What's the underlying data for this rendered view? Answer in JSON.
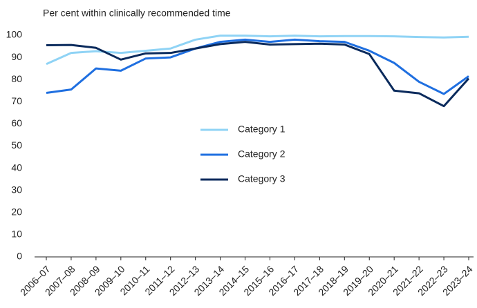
{
  "chart_data": {
    "type": "line",
    "y_axis_label": "Per cent within clinically recommended time",
    "categories": [
      "2006–07",
      "2007–08",
      "2008–09",
      "2009–10",
      "2010–11",
      "2011–12",
      "2012–13",
      "2013–14",
      "2014–15",
      "2015–16",
      "2016–17",
      "2017–18",
      "2018–19",
      "2019–20",
      "2020–21",
      "2021–22",
      "2022–23",
      "2023–24"
    ],
    "series": [
      {
        "name": "Category 1",
        "color": "#8fd3f5",
        "values": [
          87,
          92,
          92.8,
          92,
          93,
          94,
          98,
          99.8,
          99.8,
          99.5,
          99.8,
          99.5,
          99.6,
          99.6,
          99.5,
          99.2,
          99,
          99.3
        ]
      },
      {
        "name": "Category 2",
        "color": "#1f6fe0",
        "values": [
          74,
          75.5,
          85,
          84,
          89.5,
          90,
          94,
          97,
          98,
          97,
          98,
          97.3,
          97,
          93,
          87.5,
          79,
          73.5,
          81.5
        ]
      },
      {
        "name": "Category 3",
        "color": "#0a2a5c",
        "values": [
          95.5,
          95.6,
          94.3,
          89,
          91.8,
          92,
          94,
          96,
          97,
          95.8,
          96,
          96.2,
          95.8,
          91.5,
          75,
          73.8,
          68,
          80.5
        ]
      }
    ],
    "ylim": [
      0,
      100
    ],
    "yticks": [
      0,
      10,
      20,
      30,
      40,
      50,
      60,
      70,
      80,
      90,
      100
    ],
    "grid": false,
    "legend": "center"
  }
}
